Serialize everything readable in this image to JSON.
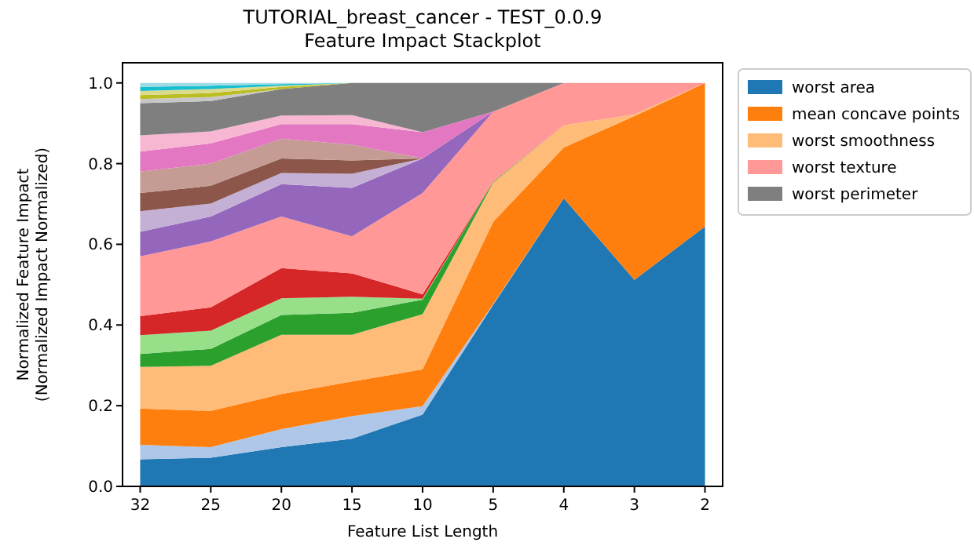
{
  "chart_data": {
    "type": "area",
    "stacked": true,
    "title": "TUTORIAL_breast_cancer - TEST_0.0.9",
    "subtitle": "Feature Impact Stackplot",
    "xlabel": "Feature List Length",
    "ylabel": "Normalized Feature Impact\n(Normalized Impact Normalized)",
    "categories": [
      "32",
      "25",
      "20",
      "15",
      "10",
      "5",
      "4",
      "3",
      "2"
    ],
    "ylim": [
      0,
      1.05
    ],
    "yticks": [
      {
        "value": 0,
        "label": "0.0"
      },
      {
        "value": 0.2,
        "label": "0.2"
      },
      {
        "value": 0.4,
        "label": "0.4"
      },
      {
        "value": 0.6,
        "label": "0.6"
      },
      {
        "value": 0.8,
        "label": "0.8"
      },
      {
        "value": 1,
        "label": "1.0"
      }
    ],
    "legend": "right",
    "grid": false,
    "series": [
      {
        "name": "worst area",
        "color": "#1f77b4",
        "values": [
          0.067,
          0.071,
          0.097,
          0.118,
          0.178,
          0.45,
          0.714,
          0.512,
          0.644
        ]
      },
      {
        "color": "#aec7e8",
        "values": [
          0.036,
          0.026,
          0.045,
          0.056,
          0.021,
          0.002,
          0,
          0,
          0
        ]
      },
      {
        "name": "mean concave points",
        "color": "#ff7f0e",
        "values": [
          0.09,
          0.09,
          0.087,
          0.086,
          0.091,
          0.204,
          0.126,
          0.406,
          0.356
        ]
      },
      {
        "name": "worst smoothness",
        "color": "#ffbb78",
        "values": [
          0.103,
          0.112,
          0.147,
          0.116,
          0.137,
          0.097,
          0.055,
          0.004,
          0
        ]
      },
      {
        "color": "#2ca02c",
        "values": [
          0.032,
          0.042,
          0.049,
          0.054,
          0.036,
          0.002,
          0,
          0,
          0
        ]
      },
      {
        "color": "#98df8a",
        "values": [
          0.047,
          0.045,
          0.041,
          0.04,
          0.002,
          0,
          0,
          0,
          0
        ]
      },
      {
        "color": "#d62728",
        "values": [
          0.047,
          0.058,
          0.075,
          0.058,
          0.011,
          0,
          0,
          0,
          0
        ]
      },
      {
        "name": "worst texture",
        "color": "#ff9896",
        "values": [
          0.148,
          0.163,
          0.128,
          0.092,
          0.251,
          0.174,
          0.105,
          0.078,
          0
        ]
      },
      {
        "color": "#9467bd",
        "values": [
          0.061,
          0.062,
          0.08,
          0.12,
          0.086,
          0,
          0,
          0,
          0
        ]
      },
      {
        "color": "#c5b0d5",
        "values": [
          0.051,
          0.032,
          0.028,
          0.035,
          0,
          0,
          0,
          0,
          0
        ]
      },
      {
        "color": "#8c564b",
        "values": [
          0.045,
          0.044,
          0.036,
          0.033,
          0,
          0,
          0,
          0,
          0
        ]
      },
      {
        "color": "#c49c94",
        "values": [
          0.053,
          0.055,
          0.049,
          0.039,
          0,
          0,
          0,
          0,
          0
        ]
      },
      {
        "color": "#e377c2",
        "values": [
          0.05,
          0.05,
          0.036,
          0.051,
          0.065,
          0,
          0,
          0,
          0
        ]
      },
      {
        "color": "#f7b6d2",
        "values": [
          0.04,
          0.03,
          0.021,
          0.022,
          0,
          0,
          0,
          0,
          0
        ]
      },
      {
        "name": "worst perimeter",
        "color": "#7f7f7f",
        "values": [
          0.08,
          0.075,
          0.066,
          0.08,
          0.122,
          0.071,
          0,
          0,
          0
        ]
      },
      {
        "color": "#c7c7c7",
        "values": [
          0.01,
          0.01,
          0,
          0,
          0,
          0,
          0,
          0,
          0
        ]
      },
      {
        "color": "#bcbd22",
        "values": [
          0.01,
          0.01,
          0.005,
          0,
          0,
          0,
          0,
          0,
          0
        ]
      },
      {
        "color": "#dbdb8d",
        "values": [
          0.01,
          0.01,
          0.003,
          0,
          0,
          0,
          0,
          0,
          0
        ]
      },
      {
        "color": "#17becf",
        "values": [
          0.01,
          0.008,
          0.004,
          0,
          0,
          0,
          0,
          0,
          0
        ]
      },
      {
        "color": "#9edae5",
        "values": [
          0.01,
          0.007,
          0.003,
          0,
          0,
          0,
          0,
          0,
          0
        ]
      }
    ]
  }
}
